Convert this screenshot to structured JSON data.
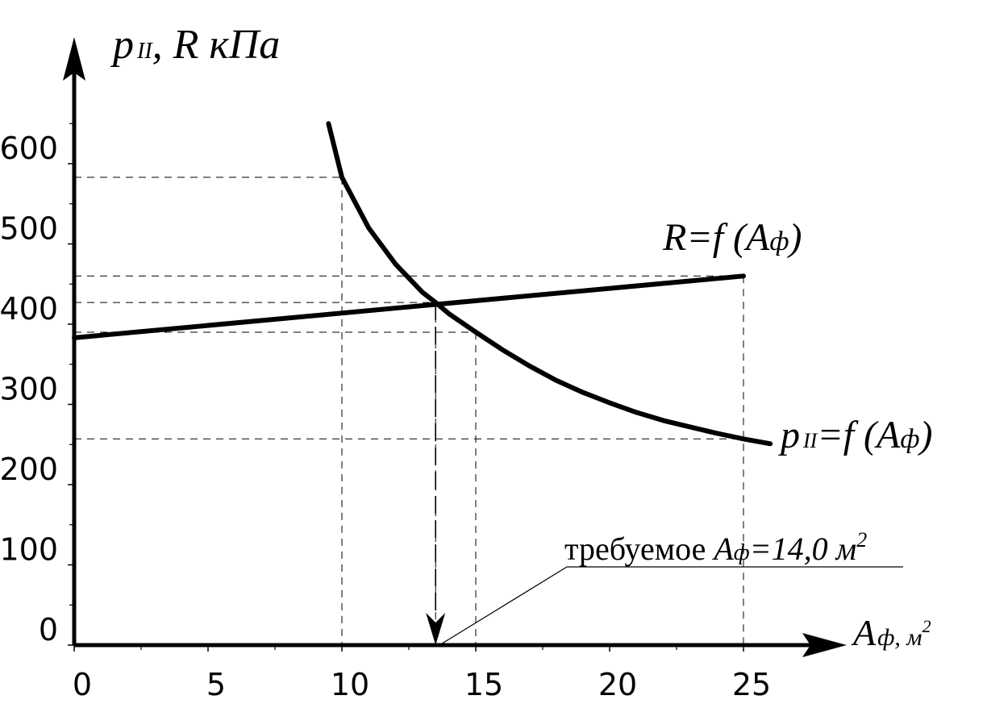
{
  "chart_data": {
    "type": "line",
    "y_axis_label": {
      "main": "p",
      "sub": "II",
      "rest": ", R кПа"
    },
    "x_axis_label": {
      "main": "A",
      "sub": "ф",
      "rest": ", м",
      "sup": "2"
    },
    "xlim": [
      0,
      27.5
    ],
    "ylim": [
      0,
      700
    ],
    "x_ticks": [
      0,
      5,
      10,
      15,
      20,
      25
    ],
    "x_tick_labels": [
      "0",
      "5",
      "10",
      "15",
      "20",
      "25"
    ],
    "y_ticks": [
      0,
      100,
      200,
      300,
      400,
      500,
      600
    ],
    "y_tick_labels": [
      "0",
      "100",
      "200",
      "300",
      "400",
      "500",
      "600"
    ],
    "series": [
      {
        "label": {
          "main": "R=f (A",
          "sub": "ф",
          "end": ")"
        },
        "x": [
          0,
          25
        ],
        "y": [
          383,
          460
        ]
      },
      {
        "label": {
          "pre": "p",
          "sub1": "II",
          "mid": "=f (A",
          "sub2": "ф",
          "end": ")"
        },
        "x": [
          9.5,
          10,
          11,
          12,
          13,
          13.5,
          14,
          15,
          16,
          17,
          18,
          19,
          20,
          21,
          22,
          23,
          24,
          25,
          26
        ],
        "y": [
          650,
          583,
          520,
          475,
          440,
          427,
          413,
          390,
          368,
          348,
          330,
          315,
          302,
          290,
          280,
          272,
          264,
          257,
          251
        ]
      }
    ],
    "guide_lines": {
      "horizontal_y": [
        583,
        460,
        427,
        390,
        257
      ],
      "vertical_x": [
        10,
        13.5,
        15,
        25
      ]
    },
    "annotation": {
      "text_plain": "требуемое ",
      "text_italic": "A",
      "text_sub": "ф",
      "text_value": "=14,0 м",
      "text_sup": "2",
      "x": 13.5
    }
  }
}
